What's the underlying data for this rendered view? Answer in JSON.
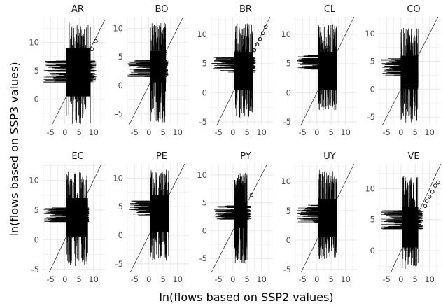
{
  "chart_data": {
    "type": "scatter",
    "xlabel": "ln(flows based on SSP2 values)",
    "ylabel": "ln(flows based on SSP3 values)",
    "reference_line": "y = x",
    "grid": true,
    "xlim": [
      -8,
      14
    ],
    "x_ticks": [
      -5,
      0,
      5,
      10
    ],
    "panels": [
      {
        "label": "AR",
        "ylim": [
          -4.6,
          14.5
        ],
        "y_ticks": [
          0,
          5,
          10
        ],
        "y_ticklabels": [
          "0",
          "5",
          "10"
        ],
        "cloud": {
          "x_core": [
            0.5,
            9.0
          ],
          "y_core": [
            0.5,
            9.0
          ],
          "x_min": -7.5,
          "x_max": 11.0,
          "y_min": -4.4,
          "y_max": 13.6,
          "arm_y": [
            3.0,
            7.0
          ]
        },
        "points": [
          [
            10.8,
            10.2
          ],
          [
            9.5,
            8.8
          ],
          [
            8.0,
            7.3
          ]
        ]
      },
      {
        "label": "BO",
        "ylim": [
          -7.0,
          12.0
        ],
        "y_ticks": [
          -5,
          0,
          5,
          10
        ],
        "y_ticklabels": [
          "-5",
          "0",
          "5",
          "10"
        ],
        "cloud": {
          "x_core": [
            0.5,
            6.0
          ],
          "y_core": [
            0.5,
            6.0
          ],
          "x_min": -7.5,
          "x_max": 6.8,
          "y_min": -6.5,
          "y_max": 11.0,
          "arm_y": [
            1.5,
            4.5
          ]
        },
        "points": [
          [
            5.8,
            5.6
          ]
        ]
      },
      {
        "label": "BR",
        "ylim": [
          -5.6,
          13.0
        ],
        "y_ticks": [
          -5,
          0,
          5,
          10
        ],
        "y_ticklabels": [
          "-5",
          "0",
          "5",
          "10"
        ],
        "cloud": {
          "x_core": [
            0.5,
            7.0
          ],
          "y_core": [
            0.5,
            7.0
          ],
          "x_min": -7.5,
          "x_max": 8.0,
          "y_min": -4.5,
          "y_max": 12.0,
          "arm_y": [
            3.5,
            6.0
          ]
        },
        "points": [
          [
            11.5,
            11.3
          ],
          [
            10.5,
            10.2
          ],
          [
            9.5,
            9.2
          ],
          [
            8.5,
            8.3
          ],
          [
            7.5,
            7.3
          ]
        ]
      },
      {
        "label": "CL",
        "ylim": [
          -5.6,
          13.0
        ],
        "y_ticks": [
          -5,
          0,
          5,
          10
        ],
        "y_ticklabels": [
          "-5",
          "0",
          "5",
          "10"
        ],
        "cloud": {
          "x_core": [
            0.5,
            7.0
          ],
          "y_core": [
            0.5,
            7.0
          ],
          "x_min": -7.0,
          "x_max": 7.0,
          "y_min": -3.0,
          "y_max": 11.8,
          "arm_y": [
            4.0,
            6.5
          ]
        },
        "points": []
      },
      {
        "label": "CO",
        "ylim": [
          -6.5,
          13.0
        ],
        "y_ticks": [
          -5,
          0,
          5,
          10
        ],
        "y_ticklabels": [
          "-5",
          "0",
          "5",
          "10"
        ],
        "cloud": {
          "x_core": [
            0.0,
            6.0
          ],
          "y_core": [
            0.0,
            6.0
          ],
          "x_min": -7.0,
          "x_max": 6.0,
          "y_min": -6.0,
          "y_max": 11.0,
          "arm_y": [
            2.5,
            5.5
          ]
        },
        "points": []
      },
      {
        "label": "EC",
        "ylim": [
          -5.5,
          12.8
        ],
        "y_ticks": [
          -5,
          0,
          5,
          10
        ],
        "y_ticklabels": [
          "-5",
          "0",
          "5",
          "10"
        ],
        "cloud": {
          "x_core": [
            0.5,
            8.0
          ],
          "y_core": [
            0.5,
            7.0
          ],
          "x_min": -7.5,
          "x_max": 8.5,
          "y_min": -4.5,
          "y_max": 11.5,
          "arm_y": [
            3.0,
            5.5
          ]
        },
        "points": []
      },
      {
        "label": "PE",
        "ylim": [
          -6.5,
          12.5
        ],
        "y_ticks": [
          -5,
          0,
          5,
          10
        ],
        "y_ticklabels": [
          "-5",
          "0",
          "5",
          "10"
        ],
        "cloud": {
          "x_core": [
            0.5,
            7.0
          ],
          "y_core": [
            0.5,
            7.0
          ],
          "x_min": -7.0,
          "x_max": 7.0,
          "y_min": -4.5,
          "y_max": 11.5,
          "arm_y": [
            3.5,
            6.0
          ]
        },
        "points": [
          [
            6.5,
            6.8
          ]
        ]
      },
      {
        "label": "PY",
        "ylim": [
          -7.5,
          12.0
        ],
        "y_ticks": [
          -5,
          0,
          5,
          10
        ],
        "y_ticklabels": [
          "-5",
          "0",
          "5",
          "10"
        ],
        "cloud": {
          "x_core": [
            0.5,
            5.0
          ],
          "y_core": [
            0.5,
            5.0
          ],
          "x_min": -6.5,
          "x_max": 6.5,
          "y_min": -6.0,
          "y_max": 10.5,
          "arm_y": [
            2.0,
            4.5
          ]
        },
        "points": [
          [
            6.5,
            6.4
          ]
        ]
      },
      {
        "label": "UY",
        "ylim": [
          -5.5,
          13.0
        ],
        "y_ticks": [
          -5,
          0,
          5,
          10
        ],
        "y_ticklabels": [
          "-5",
          "0",
          "5",
          "10"
        ],
        "cloud": {
          "x_core": [
            0.5,
            7.0
          ],
          "y_core": [
            0.5,
            7.0
          ],
          "x_min": -7.0,
          "x_max": 7.0,
          "y_min": -3.5,
          "y_max": 12.0,
          "arm_y": [
            3.0,
            6.0
          ]
        },
        "points": []
      },
      {
        "label": "VE",
        "ylim": [
          -3.5,
          14.0
        ],
        "y_ticks": [
          0,
          5,
          10
        ],
        "y_ticklabels": [
          "0",
          "5",
          "10"
        ],
        "cloud": {
          "x_core": [
            0.5,
            6.0
          ],
          "y_core": [
            0.5,
            7.0
          ],
          "x_min": -7.0,
          "x_max": 8.0,
          "y_min": -3.0,
          "y_max": 12.0,
          "arm_y": [
            3.5,
            6.5
          ]
        },
        "points": [
          [
            13.0,
            11.0
          ],
          [
            12.0,
            10.5
          ],
          [
            11.0,
            9.5
          ],
          [
            10.0,
            8.7
          ],
          [
            9.0,
            8.0
          ],
          [
            8.5,
            7.2
          ]
        ]
      }
    ]
  }
}
